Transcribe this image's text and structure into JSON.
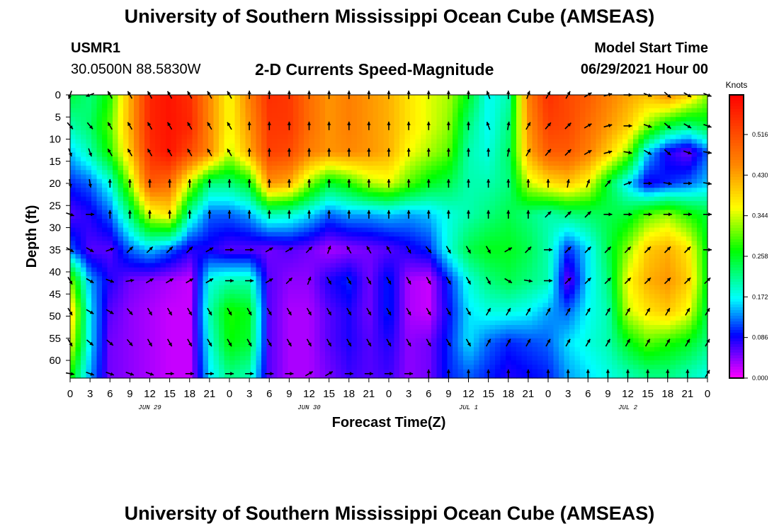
{
  "page": {
    "title_top": "University of Southern Mississippi Ocean Cube (AMSEAS)",
    "title_bottom": "University of Southern Mississippi Ocean Cube (AMSEAS)",
    "station": "USMR1",
    "coords": "30.0500N  88.5830W",
    "subtitle": "2-D Currents Speed-Magnitude",
    "model_label": "Model Start Time",
    "model_time": "06/29/2021 Hour 00"
  },
  "chart_data": {
    "type": "heatmap",
    "title": "2-D Currents Speed-Magnitude",
    "xlabel": "Forecast Time(Z)",
    "ylabel": "Depth (ft)",
    "x_ticks": [
      "0",
      "3",
      "6",
      "9",
      "12",
      "15",
      "18",
      "21",
      "0",
      "3",
      "6",
      "9",
      "12",
      "15",
      "18",
      "21",
      "0",
      "3",
      "6",
      "9",
      "12",
      "15",
      "18",
      "21",
      "0",
      "3",
      "6",
      "9",
      "12",
      "15",
      "18",
      "21",
      "0"
    ],
    "date_labels": [
      {
        "label": "JUN 29",
        "hour": 12
      },
      {
        "label": "JUN 30",
        "hour": 36
      },
      {
        "label": "JUL 1",
        "hour": 60
      },
      {
        "label": "JUL 2",
        "hour": 84
      }
    ],
    "x_range_hours": [
      0,
      96
    ],
    "y_ticks": [
      "0",
      "5",
      "10",
      "15",
      "20",
      "25",
      "30",
      "35",
      "40",
      "45",
      "50",
      "55",
      "60"
    ],
    "y_range": [
      0,
      64
    ],
    "colorbar": {
      "unit_label": "Knots",
      "min": 0.0,
      "max": 0.6,
      "tick_values": [
        0.0,
        0.086,
        0.172,
        0.258,
        0.344,
        0.43,
        0.516
      ],
      "tick_labels": [
        "0.000",
        "0.086",
        "0.172",
        "0.258",
        "0.344",
        "0.430",
        "0.516"
      ]
    },
    "depth_levels": [
      0,
      7,
      13,
      20,
      27,
      35,
      42,
      49,
      56,
      63
    ],
    "time_hours": [
      0,
      3,
      6,
      9,
      12,
      15,
      18,
      21,
      24,
      27,
      30,
      33,
      36,
      39,
      42,
      45,
      48,
      51,
      54,
      57,
      60,
      63,
      66,
      69,
      72,
      75,
      78,
      81,
      84,
      87,
      90,
      93,
      96
    ],
    "speed": [
      [
        0.25,
        0.22,
        0.28,
        0.42,
        0.56,
        0.58,
        0.55,
        0.45,
        0.36,
        0.46,
        0.55,
        0.54,
        0.48,
        0.44,
        0.46,
        0.44,
        0.42,
        0.38,
        0.35,
        0.33,
        0.26,
        0.17,
        0.2,
        0.46,
        0.55,
        0.52,
        0.5,
        0.46,
        0.43,
        0.41,
        0.45,
        0.4,
        0.32
      ],
      [
        0.2,
        0.23,
        0.3,
        0.42,
        0.56,
        0.58,
        0.56,
        0.45,
        0.36,
        0.44,
        0.54,
        0.54,
        0.48,
        0.44,
        0.46,
        0.44,
        0.42,
        0.38,
        0.35,
        0.32,
        0.22,
        0.17,
        0.22,
        0.44,
        0.53,
        0.52,
        0.48,
        0.44,
        0.4,
        0.32,
        0.25,
        0.22,
        0.25
      ],
      [
        0.15,
        0.2,
        0.28,
        0.4,
        0.55,
        0.58,
        0.52,
        0.45,
        0.34,
        0.42,
        0.53,
        0.52,
        0.46,
        0.44,
        0.45,
        0.44,
        0.42,
        0.36,
        0.33,
        0.3,
        0.2,
        0.18,
        0.23,
        0.42,
        0.5,
        0.5,
        0.46,
        0.4,
        0.32,
        0.15,
        0.08,
        0.05,
        0.12
      ],
      [
        0.1,
        0.12,
        0.18,
        0.32,
        0.5,
        0.48,
        0.34,
        0.22,
        0.22,
        0.26,
        0.44,
        0.42,
        0.32,
        0.25,
        0.28,
        0.33,
        0.35,
        0.3,
        0.26,
        0.24,
        0.2,
        0.2,
        0.22,
        0.34,
        0.38,
        0.4,
        0.36,
        0.25,
        0.16,
        0.08,
        0.1,
        0.12,
        0.15
      ],
      [
        0.06,
        0.08,
        0.12,
        0.22,
        0.35,
        0.38,
        0.2,
        0.12,
        0.12,
        0.14,
        0.2,
        0.19,
        0.16,
        0.12,
        0.14,
        0.14,
        0.15,
        0.14,
        0.15,
        0.18,
        0.2,
        0.22,
        0.24,
        0.22,
        0.2,
        0.22,
        0.23,
        0.24,
        0.25,
        0.3,
        0.32,
        0.28,
        0.25
      ],
      [
        0.12,
        0.06,
        0.06,
        0.12,
        0.15,
        0.12,
        0.08,
        0.08,
        0.06,
        0.06,
        0.05,
        0.06,
        0.05,
        0.03,
        0.04,
        0.05,
        0.06,
        0.08,
        0.1,
        0.18,
        0.24,
        0.26,
        0.26,
        0.24,
        0.2,
        0.1,
        0.16,
        0.24,
        0.32,
        0.4,
        0.42,
        0.38,
        0.26
      ],
      [
        0.32,
        0.14,
        0.08,
        0.05,
        0.04,
        0.03,
        0.02,
        0.18,
        0.2,
        0.2,
        0.06,
        0.04,
        0.04,
        0.08,
        0.1,
        0.05,
        0.1,
        0.03,
        0.02,
        0.1,
        0.18,
        0.22,
        0.24,
        0.22,
        0.2,
        0.05,
        0.16,
        0.22,
        0.36,
        0.42,
        0.44,
        0.4,
        0.26
      ],
      [
        0.4,
        0.16,
        0.06,
        0.04,
        0.03,
        0.02,
        0.02,
        0.2,
        0.28,
        0.26,
        0.06,
        0.03,
        0.03,
        0.06,
        0.08,
        0.05,
        0.1,
        0.03,
        0.02,
        0.09,
        0.16,
        0.18,
        0.18,
        0.17,
        0.14,
        0.12,
        0.17,
        0.2,
        0.34,
        0.38,
        0.4,
        0.36,
        0.24
      ],
      [
        0.36,
        0.16,
        0.05,
        0.04,
        0.03,
        0.02,
        0.02,
        0.18,
        0.27,
        0.25,
        0.06,
        0.03,
        0.03,
        0.06,
        0.08,
        0.06,
        0.08,
        0.04,
        0.05,
        0.1,
        0.16,
        0.12,
        0.1,
        0.11,
        0.12,
        0.16,
        0.18,
        0.2,
        0.26,
        0.3,
        0.28,
        0.26,
        0.22
      ],
      [
        0.28,
        0.14,
        0.05,
        0.04,
        0.03,
        0.02,
        0.02,
        0.16,
        0.22,
        0.2,
        0.06,
        0.03,
        0.03,
        0.05,
        0.07,
        0.06,
        0.07,
        0.04,
        0.05,
        0.1,
        0.12,
        0.1,
        0.08,
        0.09,
        0.1,
        0.14,
        0.16,
        0.18,
        0.2,
        0.22,
        0.22,
        0.2,
        0.18
      ]
    ],
    "direction_deg": [
      [
        200,
        250,
        330,
        330,
        330,
        330,
        330,
        330,
        330,
        0,
        0,
        0,
        0,
        0,
        0,
        0,
        0,
        0,
        0,
        0,
        0,
        340,
        0,
        20,
        30,
        30,
        60,
        75,
        90,
        110,
        130,
        120,
        110
      ],
      [
        140,
        140,
        330,
        330,
        330,
        330,
        330,
        330,
        330,
        0,
        0,
        0,
        0,
        0,
        0,
        0,
        0,
        0,
        0,
        0,
        0,
        340,
        10,
        30,
        40,
        45,
        60,
        75,
        90,
        110,
        130,
        120,
        110
      ],
      [
        160,
        160,
        330,
        330,
        330,
        330,
        330,
        330,
        330,
        0,
        0,
        0,
        0,
        0,
        0,
        0,
        0,
        0,
        0,
        0,
        0,
        0,
        10,
        30,
        40,
        45,
        60,
        75,
        100,
        120,
        130,
        110,
        100
      ],
      [
        170,
        170,
        0,
        0,
        0,
        0,
        0,
        0,
        0,
        0,
        0,
        0,
        0,
        0,
        0,
        0,
        0,
        0,
        0,
        0,
        0,
        0,
        0,
        0,
        0,
        10,
        20,
        40,
        70,
        90,
        100,
        90,
        100
      ],
      [
        110,
        90,
        0,
        0,
        0,
        0,
        0,
        0,
        0,
        0,
        0,
        0,
        0,
        0,
        0,
        0,
        0,
        0,
        0,
        0,
        0,
        0,
        0,
        0,
        45,
        45,
        45,
        90,
        90,
        90,
        90,
        90,
        90
      ],
      [
        120,
        120,
        70,
        45,
        45,
        45,
        45,
        60,
        90,
        90,
        60,
        60,
        45,
        20,
        330,
        330,
        330,
        150,
        140,
        150,
        150,
        150,
        60,
        45,
        90,
        45,
        45,
        45,
        45,
        45,
        45,
        45,
        90
      ],
      [
        150,
        120,
        110,
        80,
        60,
        60,
        60,
        60,
        90,
        90,
        60,
        45,
        20,
        150,
        150,
        150,
        150,
        150,
        150,
        150,
        150,
        150,
        120,
        100,
        90,
        45,
        45,
        45,
        45,
        45,
        45,
        45,
        45
      ],
      [
        150,
        120,
        120,
        140,
        150,
        150,
        150,
        150,
        150,
        150,
        150,
        150,
        150,
        150,
        150,
        150,
        150,
        150,
        150,
        150,
        150,
        30,
        30,
        30,
        30,
        30,
        30,
        30,
        30,
        30,
        30,
        30,
        30
      ],
      [
        150,
        130,
        130,
        140,
        150,
        150,
        150,
        150,
        150,
        150,
        150,
        150,
        150,
        150,
        150,
        150,
        150,
        150,
        150,
        150,
        150,
        30,
        30,
        30,
        30,
        30,
        30,
        30,
        30,
        30,
        30,
        30,
        30
      ],
      [
        100,
        110,
        110,
        110,
        110,
        90,
        90,
        90,
        90,
        90,
        90,
        90,
        60,
        60,
        90,
        90,
        90,
        90,
        0,
        0,
        0,
        0,
        0,
        0,
        0,
        0,
        0,
        0,
        0,
        0,
        0,
        0,
        30
      ]
    ]
  }
}
